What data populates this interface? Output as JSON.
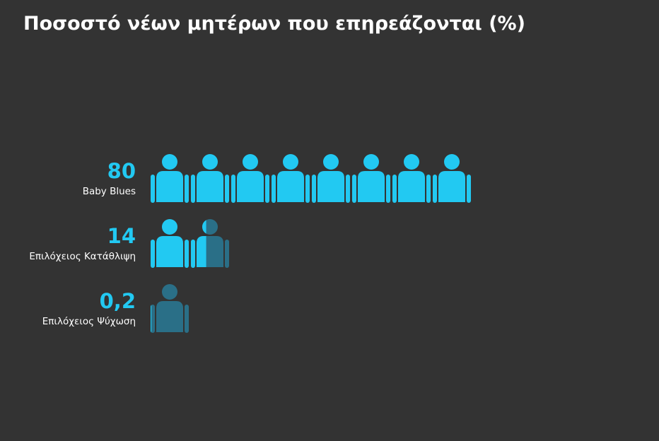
{
  "chart_data": {
    "type": "pictograph",
    "title": "Ποσοστό νέων μητέρων που επηρεάζονται (%)",
    "categories": [
      "Baby Blues",
      "Επιλόχειος Κατάθλιψη",
      "Επιλόχειος Ψύχωση"
    ],
    "values": [
      80,
      14,
      0.2
    ],
    "value_labels": [
      "80",
      "14",
      "0,2"
    ],
    "color": "#22c9f2",
    "background_color": "#2a6f87"
  }
}
